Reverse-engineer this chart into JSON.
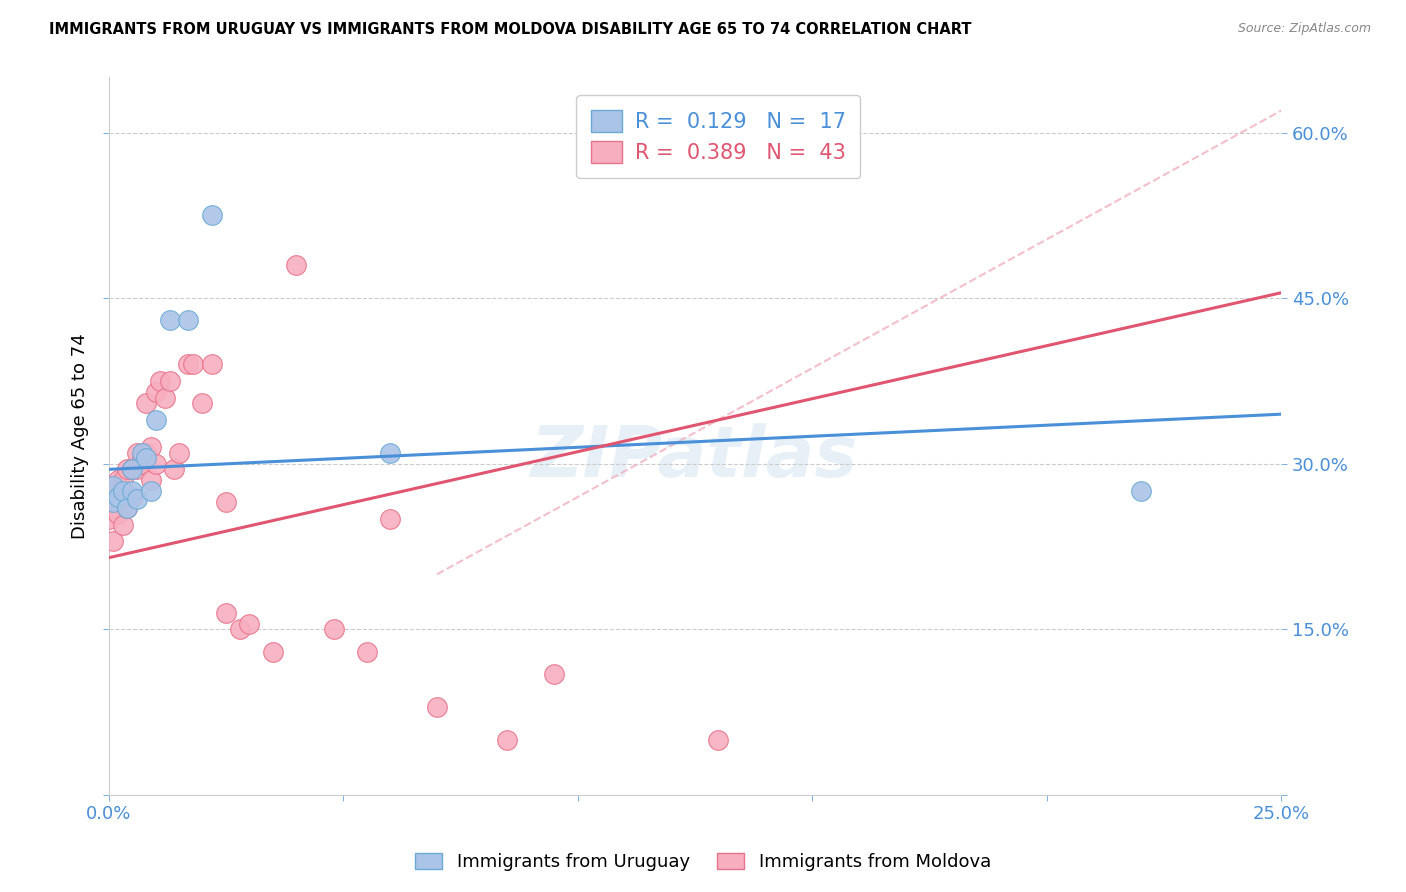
{
  "title": "IMMIGRANTS FROM URUGUAY VS IMMIGRANTS FROM MOLDOVA DISABILITY AGE 65 TO 74 CORRELATION CHART",
  "source": "Source: ZipAtlas.com",
  "ylabel": "Disability Age 65 to 74",
  "xlim": [
    0.0,
    0.25
  ],
  "ylim": [
    0.0,
    0.65
  ],
  "xticks": [
    0.0,
    0.05,
    0.1,
    0.15,
    0.2,
    0.25
  ],
  "yticks": [
    0.0,
    0.15,
    0.3,
    0.45,
    0.6
  ],
  "ytick_labels": [
    "",
    "15.0%",
    "30.0%",
    "45.0%",
    "60.0%"
  ],
  "xtick_labels": [
    "0.0%",
    "",
    "",
    "",
    "",
    "25.0%"
  ],
  "uruguay_color": "#aac4e8",
  "moldova_color": "#f7afc0",
  "uruguay_edge_color": "#6aaad4",
  "moldova_edge_color": "#e8728a",
  "uruguay_line_color": "#4a90d9",
  "moldova_line_color": "#e05570",
  "dash_color": "#f0b0c0",
  "uruguay_R": 0.129,
  "uruguay_N": 17,
  "moldova_R": 0.389,
  "moldova_N": 43,
  "watermark": "ZIPatlas",
  "legend_label_ury": "R =  0.129   N =  17",
  "legend_label_mol": "R =  0.389   N =  43",
  "bottom_label_ury": "Immigrants from Uruguay",
  "bottom_label_mol": "Immigrants from Moldova",
  "uruguay_line_x": [
    0.0,
    0.25
  ],
  "uruguay_line_y": [
    0.295,
    0.345
  ],
  "moldova_line_x": [
    0.0,
    0.25
  ],
  "moldova_line_y": [
    0.215,
    0.455
  ],
  "dash_line_x": [
    0.07,
    0.25
  ],
  "dash_line_y": [
    0.2,
    0.62
  ],
  "uruguay_scatter_x": [
    0.001,
    0.001,
    0.002,
    0.003,
    0.004,
    0.005,
    0.005,
    0.006,
    0.007,
    0.008,
    0.009,
    0.01,
    0.013,
    0.017,
    0.022,
    0.06,
    0.22
  ],
  "uruguay_scatter_y": [
    0.265,
    0.28,
    0.27,
    0.275,
    0.26,
    0.275,
    0.295,
    0.268,
    0.31,
    0.305,
    0.275,
    0.34,
    0.43,
    0.43,
    0.525,
    0.31,
    0.275
  ],
  "moldova_scatter_x": [
    0.0,
    0.001,
    0.001,
    0.002,
    0.002,
    0.003,
    0.003,
    0.004,
    0.004,
    0.005,
    0.005,
    0.006,
    0.006,
    0.007,
    0.007,
    0.008,
    0.008,
    0.009,
    0.009,
    0.01,
    0.01,
    0.011,
    0.012,
    0.013,
    0.014,
    0.015,
    0.017,
    0.018,
    0.02,
    0.022,
    0.025,
    0.028,
    0.03,
    0.035,
    0.04,
    0.048,
    0.055,
    0.06,
    0.07,
    0.085,
    0.095,
    0.13,
    0.025
  ],
  "moldova_scatter_y": [
    0.25,
    0.23,
    0.27,
    0.255,
    0.285,
    0.245,
    0.285,
    0.26,
    0.295,
    0.27,
    0.295,
    0.31,
    0.295,
    0.305,
    0.3,
    0.355,
    0.31,
    0.315,
    0.285,
    0.3,
    0.365,
    0.375,
    0.36,
    0.375,
    0.295,
    0.31,
    0.39,
    0.39,
    0.355,
    0.39,
    0.265,
    0.15,
    0.155,
    0.13,
    0.48,
    0.15,
    0.13,
    0.25,
    0.08,
    0.05,
    0.11,
    0.05,
    0.165
  ]
}
